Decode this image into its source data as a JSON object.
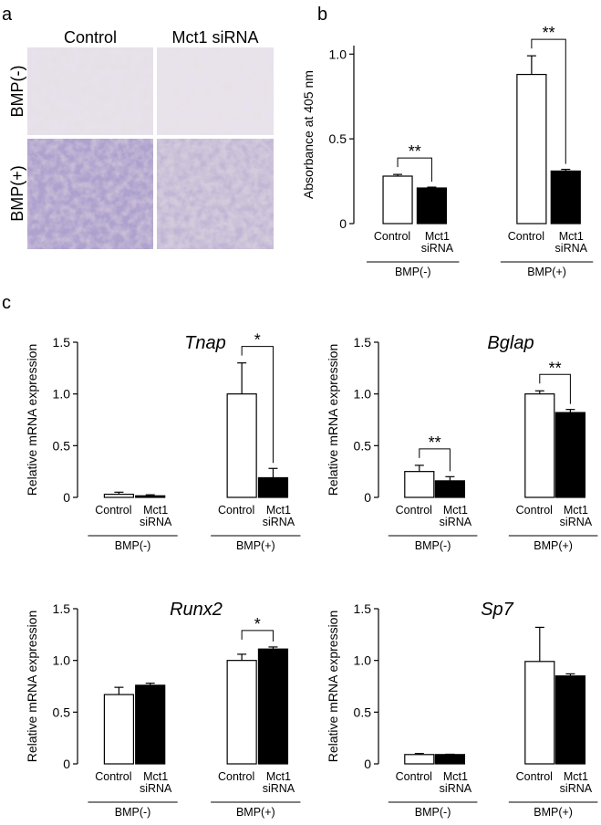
{
  "panel_labels": [
    "a",
    "b",
    "c"
  ],
  "panel_a": {
    "columns": [
      "Control",
      "Mct1 siRNA"
    ],
    "rows": [
      "BMP(-)",
      "BMP(+)"
    ]
  },
  "chart_data": [
    {
      "type": "bar",
      "y_label": "Absorbance at 405 nm",
      "groups": [
        "BMP(-)",
        "BMP(+)"
      ],
      "series": [
        {
          "name": "Control",
          "color": "#ffffff",
          "values": [
            0.28,
            0.88
          ],
          "errors": [
            0.01,
            0.11
          ]
        },
        {
          "name": "Mct1 siRNA",
          "color": "#000000",
          "values": [
            0.21,
            0.31
          ],
          "errors": [
            0.005,
            0.01
          ]
        }
      ],
      "annotations": [
        {
          "group": 0,
          "text": "**"
        },
        {
          "group": 1,
          "text": "**"
        }
      ],
      "ylim": [
        0,
        1.05
      ],
      "yticks": [
        0,
        0.5,
        {
          "value": 1,
          "label": "1.0"
        }
      ]
    },
    {
      "type": "bar",
      "title": "Tnap",
      "y_label": "Relative mRNA expression",
      "groups": [
        "BMP(-)",
        "BMP(+)"
      ],
      "series": [
        {
          "name": "Control",
          "color": "#ffffff",
          "values": [
            0.03,
            1.0
          ],
          "errors": [
            0.02,
            0.3
          ]
        },
        {
          "name": "Mct1 siRNA",
          "color": "#000000",
          "values": [
            0.015,
            0.19
          ],
          "errors": [
            0.01,
            0.09
          ]
        }
      ],
      "annotations": [
        {
          "group": 1,
          "text": "*"
        }
      ],
      "ylim": [
        0,
        1.5
      ],
      "yticks": [
        0,
        0.5,
        {
          "value": 1,
          "label": "1.0"
        },
        1.5
      ]
    },
    {
      "type": "bar",
      "title": "Bglap",
      "y_label": "Relative mRNA expression",
      "groups": [
        "BMP(-)",
        "BMP(+)"
      ],
      "series": [
        {
          "name": "Control",
          "color": "#ffffff",
          "values": [
            0.25,
            1.0
          ],
          "errors": [
            0.06,
            0.03
          ]
        },
        {
          "name": "Mct1 siRNA",
          "color": "#000000",
          "values": [
            0.16,
            0.82
          ],
          "errors": [
            0.04,
            0.03
          ]
        }
      ],
      "annotations": [
        {
          "group": 0,
          "text": "**"
        },
        {
          "group": 1,
          "text": "**"
        }
      ],
      "ylim": [
        0,
        1.5
      ],
      "yticks": [
        0,
        0.5,
        {
          "value": 1,
          "label": "1.0"
        },
        1.5
      ]
    },
    {
      "type": "bar",
      "title": "Runx2",
      "y_label": "Relative mRNA expression",
      "groups": [
        "BMP(-)",
        "BMP(+)"
      ],
      "series": [
        {
          "name": "Control",
          "color": "#ffffff",
          "values": [
            0.67,
            1.0
          ],
          "errors": [
            0.07,
            0.06
          ]
        },
        {
          "name": "Mct1 siRNA",
          "color": "#000000",
          "values": [
            0.76,
            1.11
          ],
          "errors": [
            0.02,
            0.02
          ]
        }
      ],
      "annotations": [
        {
          "group": 1,
          "text": "*"
        }
      ],
      "ylim": [
        0,
        1.5
      ],
      "yticks": [
        0,
        0.5,
        {
          "value": 1,
          "label": "1.0"
        },
        1.5
      ]
    },
    {
      "type": "bar",
      "title": "Sp7",
      "y_label": "Relative mRNA expression",
      "groups": [
        "BMP(-)",
        "BMP(+)"
      ],
      "series": [
        {
          "name": "Control",
          "color": "#ffffff",
          "values": [
            0.09,
            0.99
          ],
          "errors": [
            0.01,
            0.33
          ]
        },
        {
          "name": "Mct1 siRNA",
          "color": "#000000",
          "values": [
            0.09,
            0.85
          ],
          "errors": [
            0.003,
            0.02
          ]
        }
      ],
      "annotations": [],
      "ylim": [
        0,
        1.5
      ],
      "yticks": [
        0,
        0.5,
        {
          "value": 1,
          "label": "1.0"
        },
        1.5
      ]
    }
  ]
}
